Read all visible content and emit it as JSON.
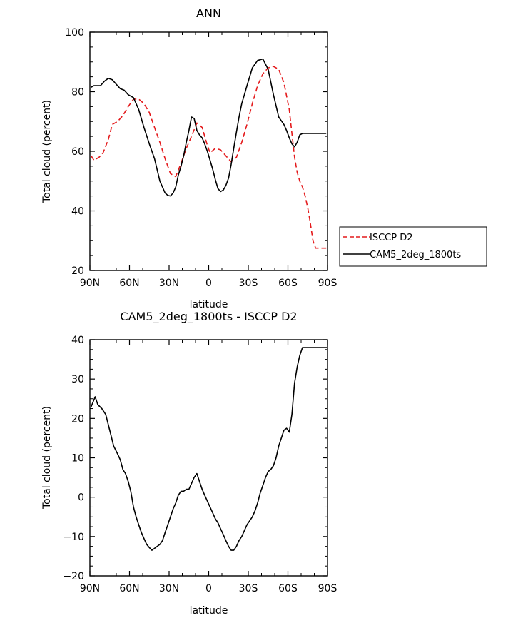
{
  "chart_data": [
    {
      "type": "line",
      "title": "ANN",
      "xlabel": "latitude",
      "ylabel": "Total cloud (percent)",
      "xlim": [
        90,
        -90
      ],
      "ylim": [
        20,
        100
      ],
      "yticks": [
        20,
        40,
        60,
        80,
        100
      ],
      "xticks": [
        90,
        60,
        30,
        0,
        -30,
        -60,
        -90
      ],
      "xtick_labels": [
        "90N",
        "60N",
        "30N",
        "0",
        "30S",
        "60S",
        "90S"
      ],
      "legend_position": "right",
      "grid": false,
      "series": [
        {
          "name": "ISCCP D2",
          "color": "#e41a1c",
          "dash": "dashed",
          "x": [
            89,
            87,
            83,
            80,
            76,
            73,
            69,
            65,
            61,
            57,
            53,
            49,
            45,
            41,
            37,
            33,
            29,
            25,
            21,
            17,
            13,
            9,
            5,
            1,
            -1,
            -5,
            -9,
            -13,
            -17,
            -21,
            -25,
            -29,
            -33,
            -37,
            -41,
            -45,
            -49,
            -53,
            -57,
            -61,
            -63,
            -65,
            -67,
            -69,
            -71,
            -73,
            -75,
            -77,
            -79,
            -81,
            -83,
            -85,
            -87,
            -89
          ],
          "y": [
            58.5,
            57,
            58,
            59.5,
            64,
            69,
            70,
            72,
            75,
            77.5,
            77.5,
            76,
            73,
            68,
            63,
            57.5,
            52.5,
            51.5,
            56,
            61,
            65,
            69.5,
            68,
            62,
            59.5,
            61,
            60.5,
            58.5,
            56.5,
            58,
            63,
            69,
            76,
            82,
            86,
            88,
            88.5,
            87.5,
            83,
            74,
            66,
            58,
            53,
            50,
            48,
            45,
            41,
            36,
            30,
            27.5,
            27.5,
            27.5,
            27.5,
            27.5
          ]
        },
        {
          "name": "CAM5_2deg_1800ts",
          "color": "#000000",
          "dash": "solid",
          "x": [
            89,
            87,
            85,
            82,
            79,
            76,
            73,
            70,
            67,
            64,
            61,
            57,
            53,
            49,
            45,
            41,
            37,
            33,
            31,
            29,
            27,
            25,
            23,
            21,
            19,
            17,
            15,
            13,
            11,
            9,
            7,
            5,
            3,
            1,
            -1,
            -3,
            -5,
            -7,
            -9,
            -11,
            -13,
            -15,
            -17,
            -19,
            -21,
            -23,
            -25,
            -27,
            -29,
            -31,
            -33,
            -37,
            -41,
            -45,
            -49,
            -53,
            -57,
            -59,
            -61,
            -63,
            -65,
            -67,
            -69,
            -71,
            -73,
            -75,
            -77,
            -79,
            -81,
            -83,
            -85,
            -87,
            -89
          ],
          "y": [
            81.5,
            82,
            82,
            82,
            83.5,
            84.5,
            84,
            82.5,
            81,
            80.5,
            79,
            78,
            74,
            68,
            62.5,
            57.5,
            50,
            46,
            45.2,
            45,
            46,
            48,
            52,
            55,
            58.5,
            63,
            67,
            71.5,
            71,
            67,
            65.5,
            64.5,
            62.5,
            60,
            57,
            54,
            50.5,
            47.5,
            46.5,
            47,
            48.5,
            51,
            55.5,
            61,
            66.5,
            71.5,
            76,
            79,
            82,
            85,
            88,
            90.5,
            91,
            87.5,
            79,
            71.5,
            69,
            67,
            64.5,
            62.5,
            61.5,
            63,
            65.5,
            66,
            66,
            66,
            66,
            66,
            66,
            66,
            66,
            66,
            66
          ]
        }
      ]
    },
    {
      "type": "line",
      "title": "CAM5_2deg_1800ts - ISCCP D2",
      "xlabel": "latitude",
      "ylabel": "Total cloud (percent)",
      "xlim": [
        90,
        -90
      ],
      "ylim": [
        -20,
        40
      ],
      "yticks": [
        -20,
        -10,
        0,
        10,
        20,
        30,
        40
      ],
      "xticks": [
        90,
        60,
        30,
        0,
        -30,
        -60,
        -90
      ],
      "xtick_labels": [
        "90N",
        "60N",
        "30N",
        "0",
        "30S",
        "60S",
        "90S"
      ],
      "grid": false,
      "series": [
        {
          "color": "#000000",
          "dash": "solid",
          "x": [
            89,
            86,
            84,
            81,
            78,
            75,
            72,
            69,
            67,
            65,
            63,
            61,
            59,
            57,
            55,
            53,
            51,
            49,
            47,
            45,
            43,
            41,
            39,
            37,
            35,
            33,
            31,
            29,
            27,
            25,
            23,
            21,
            19,
            17,
            15,
            13,
            11,
            9,
            7,
            5,
            3,
            1,
            -1,
            -3,
            -5,
            -7,
            -9,
            -11,
            -13,
            -15,
            -17,
            -19,
            -21,
            -23,
            -25,
            -27,
            -29,
            -31,
            -33,
            -35,
            -37,
            -39,
            -41,
            -43,
            -45,
            -47,
            -49,
            -51,
            -53,
            -55,
            -57,
            -59,
            -61,
            -63,
            -65,
            -67,
            -69,
            -71,
            -73,
            -75,
            -77,
            -79,
            -81,
            -83,
            -85,
            -87,
            -89,
            -90
          ],
          "y": [
            23,
            25.5,
            23.5,
            22.5,
            21,
            17,
            13,
            11,
            9.5,
            7,
            6,
            4,
            1.5,
            -2.5,
            -5,
            -7,
            -9,
            -10.5,
            -12,
            -12.8,
            -13.5,
            -13,
            -12.5,
            -12,
            -11,
            -9,
            -7,
            -5,
            -3,
            -1.5,
            0.5,
            1.5,
            1.5,
            2,
            2,
            3.5,
            5,
            6,
            4,
            2,
            0.5,
            -1,
            -2.5,
            -4,
            -5.5,
            -6.5,
            -8,
            -9.5,
            -11,
            -12.5,
            -13.5,
            -13.5,
            -12.5,
            -11,
            -10,
            -8.5,
            -7,
            -6,
            -5,
            -3.5,
            -1.5,
            1,
            3,
            5,
            6.5,
            7,
            8,
            10,
            13,
            15,
            17,
            17.5,
            16.5,
            21,
            29,
            33,
            36,
            38,
            38,
            38,
            38,
            38,
            38,
            38,
            38,
            38,
            38,
            38
          ]
        }
      ]
    }
  ]
}
